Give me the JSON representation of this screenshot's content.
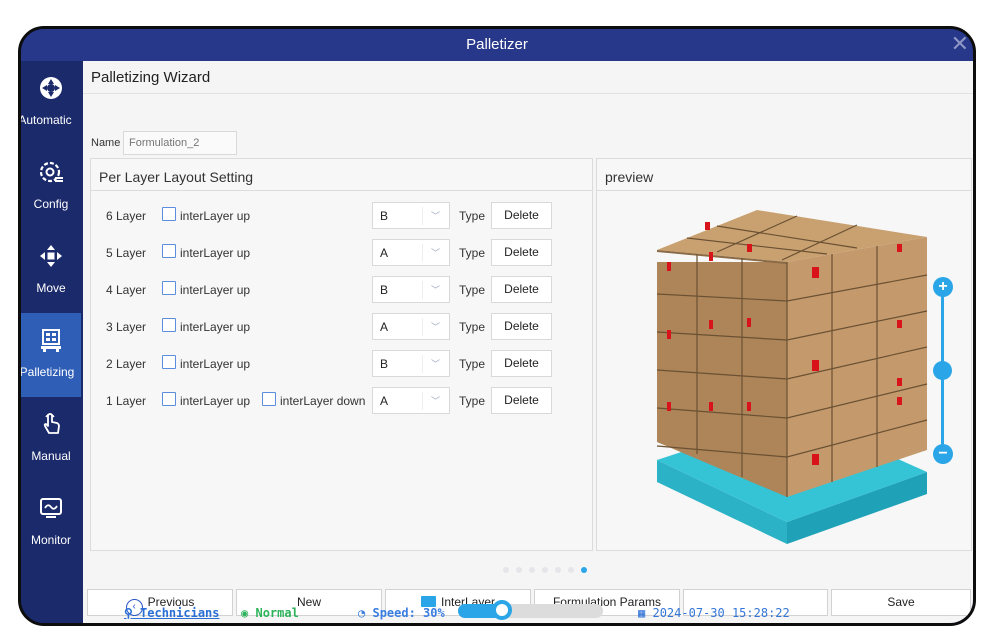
{
  "window": {
    "title": "Palletizer"
  },
  "sidebar": {
    "items": [
      {
        "label": "Automatic",
        "icon": "automatic-icon",
        "active": false
      },
      {
        "label": "Config",
        "icon": "config-icon",
        "active": false
      },
      {
        "label": "Move",
        "icon": "move-icon",
        "active": false
      },
      {
        "label": "Palletizing",
        "icon": "palletizing-icon",
        "active": true
      },
      {
        "label": "Manual",
        "icon": "manual-hand-icon",
        "active": false
      },
      {
        "label": "Monitor",
        "icon": "monitor-icon",
        "active": false
      }
    ]
  },
  "wizard": {
    "title": "Palletizing Wizard",
    "name_label": "Name",
    "name_placeholder": "Formulation_2"
  },
  "layout_panel": {
    "title": "Per Layer Layout Setting",
    "type_label": "Type",
    "delete_label": "Delete",
    "interlayer_up_label": "interLayer up",
    "interlayer_down_label": "interLayer down",
    "rows": [
      {
        "layer": "6 Layer",
        "value": "B"
      },
      {
        "layer": "5 Layer",
        "value": "A"
      },
      {
        "layer": "4 Layer",
        "value": "B"
      },
      {
        "layer": "3 Layer",
        "value": "A"
      },
      {
        "layer": "2 Layer",
        "value": "B"
      },
      {
        "layer": "1 Layer",
        "value": "A"
      }
    ]
  },
  "preview_panel": {
    "title": "preview"
  },
  "page_indicator": {
    "total": 7,
    "current": 7
  },
  "buttons": {
    "previous": "Previous",
    "new": "New",
    "interlayer": "InterLayer",
    "formulation_params": "Formulation Params",
    "save": "Save"
  },
  "status": {
    "user": "Technicians",
    "state": "Normal",
    "speed": "Speed: 30%",
    "speed_value": 0.3,
    "datetime": "2024-07-30 15:28:22"
  },
  "colors": {
    "frame": "#1b2a6b",
    "titlebar": "#27378a",
    "active_nav": "#2f5eb7",
    "accent": "#2aa6e8",
    "normal": "#2db35b"
  }
}
